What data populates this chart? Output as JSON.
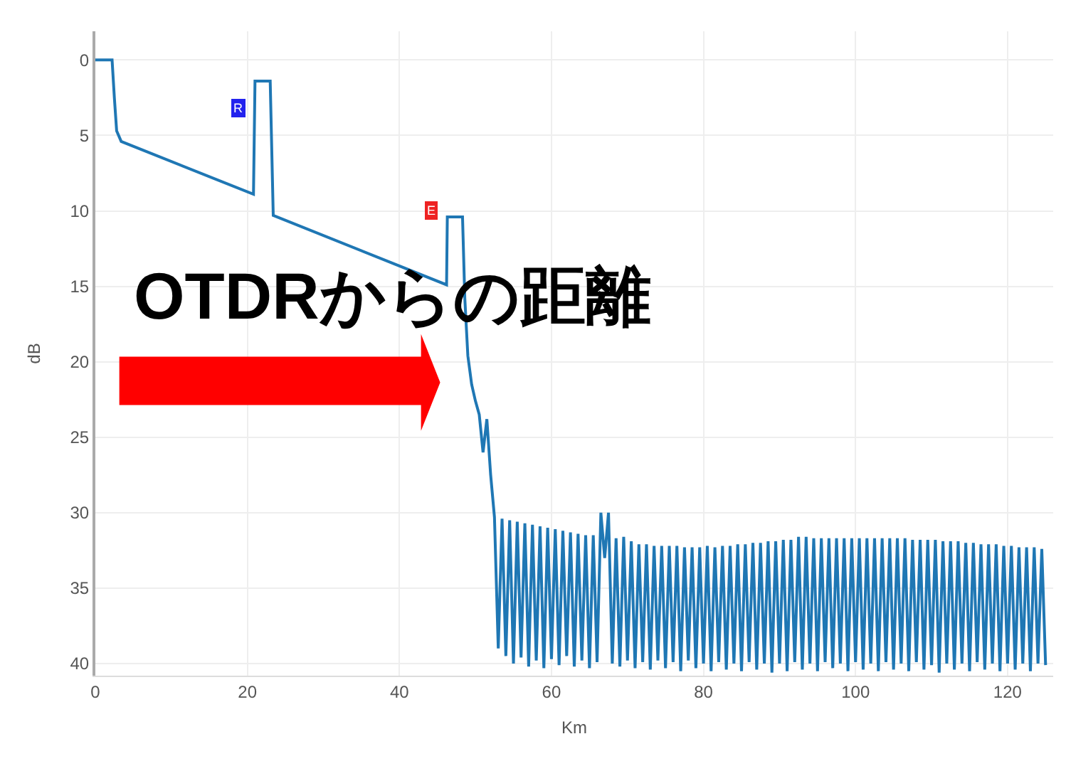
{
  "chart_data": {
    "type": "line",
    "xlabel": "Km",
    "ylabel": "dB",
    "xlim": [
      0,
      126
    ],
    "xticks": [
      0,
      20,
      40,
      60,
      80,
      100,
      120
    ],
    "ylim": [
      40.8,
      -1.9
    ],
    "yticks": [
      0,
      5,
      10,
      15,
      20,
      25,
      30,
      35,
      40
    ],
    "grid": true,
    "marker": "none",
    "line_style": "solid",
    "annotations": [
      {
        "text": "R",
        "x": 18.9,
        "y": 3.2
      },
      {
        "text": "E",
        "x": 44.2,
        "y": 10
      },
      "OTDRからの距離"
    ],
    "series": [
      {
        "color": "#1f77b4",
        "x": [
          0,
          2.2,
          2.5,
          2.8,
          3.4,
          20.8,
          21,
          23,
          23.4,
          46.2,
          46.3,
          48.3,
          48.6,
          49,
          49.5,
          50,
          50.5,
          51,
          51.5,
          52,
          52.5,
          53,
          53.5,
          54,
          54.5,
          55,
          55.5,
          56,
          56.5,
          57,
          57.5,
          58,
          58.5,
          59,
          59.5,
          60,
          60.5,
          61,
          61.5,
          62,
          62.5,
          63,
          63.5,
          64,
          64.5,
          65,
          65.5,
          66,
          66.5,
          67,
          67.5,
          68,
          68.5,
          69,
          69.5,
          70,
          70.5,
          71,
          71.5,
          72,
          72.5,
          73,
          73.5,
          74,
          74.5,
          75,
          75.5,
          76,
          76.5,
          77,
          77.5,
          78,
          78.5,
          79,
          79.5,
          80,
          80.5,
          81,
          81.5,
          82,
          82.5,
          83,
          83.5,
          84,
          84.5,
          85,
          85.5,
          86,
          86.5,
          87,
          87.5,
          88,
          88.5,
          89,
          89.5,
          90,
          90.5,
          91,
          91.5,
          92,
          92.5,
          93,
          93.5,
          94,
          94.5,
          95,
          95.5,
          96,
          96.5,
          97,
          97.5,
          98,
          98.5,
          99,
          99.5,
          100,
          100.5,
          101,
          101.5,
          102,
          102.5,
          103,
          103.5,
          104,
          104.5,
          105,
          105.5,
          106,
          106.5,
          107,
          107.5,
          108,
          108.5,
          109,
          109.5,
          110,
          110.5,
          111,
          111.5,
          112,
          112.5,
          113,
          113.5,
          114,
          114.5,
          115,
          115.5,
          116,
          116.5,
          117,
          117.5,
          118,
          118.5,
          119,
          119.5,
          120,
          120.5,
          121,
          121.5,
          122,
          122.5,
          123,
          123.5,
          124,
          124.5,
          125
        ],
        "values": [
          0,
          0,
          2.5,
          4.7,
          5.4,
          8.9,
          1.4,
          1.4,
          10.3,
          14.9,
          10.4,
          10.4,
          15.8,
          19.6,
          21.5,
          22.6,
          23.5,
          26,
          23.8,
          27.5,
          30.3,
          39,
          30.4,
          39.5,
          30.5,
          40,
          30.6,
          39.6,
          30.7,
          40.2,
          30.8,
          39.8,
          30.9,
          40.3,
          31,
          39.7,
          31.1,
          40.1,
          31.2,
          39.5,
          31.3,
          40.2,
          31.4,
          39.8,
          31.5,
          40.3,
          31.5,
          39.9,
          30,
          33,
          30,
          40,
          31.7,
          40.2,
          31.6,
          39.8,
          31.9,
          40.3,
          32.1,
          39.9,
          32.1,
          40.4,
          32.2,
          39.8,
          32.2,
          40.3,
          32.2,
          39.9,
          32.2,
          40.5,
          32.3,
          39.8,
          32.3,
          40.3,
          32.3,
          40,
          32.2,
          40.5,
          32.3,
          39.9,
          32.2,
          40.4,
          32.2,
          40,
          32.1,
          40.5,
          32.1,
          39.9,
          32,
          40.4,
          32,
          40,
          31.9,
          40.6,
          31.9,
          40,
          31.8,
          40.5,
          31.8,
          39.9,
          31.6,
          40.4,
          31.6,
          40,
          31.7,
          40.5,
          31.7,
          39.9,
          31.7,
          40.3,
          31.7,
          40,
          31.7,
          40.5,
          31.7,
          39.9,
          31.7,
          40.4,
          31.7,
          40,
          31.7,
          40.5,
          31.7,
          39.9,
          31.7,
          40.4,
          31.7,
          40,
          31.7,
          40.5,
          31.8,
          39.9,
          31.8,
          40.4,
          31.8,
          40.1,
          31.8,
          40.6,
          31.9,
          40,
          31.9,
          40.4,
          31.9,
          40,
          32,
          40.5,
          32,
          39.9,
          32.1,
          40.4,
          32.1,
          40,
          32.1,
          40.5,
          32.2,
          40,
          32.2,
          40.4,
          32.3,
          40,
          32.3,
          40.5,
          32.3,
          40,
          32.4,
          40.1
        ]
      }
    ]
  }
}
